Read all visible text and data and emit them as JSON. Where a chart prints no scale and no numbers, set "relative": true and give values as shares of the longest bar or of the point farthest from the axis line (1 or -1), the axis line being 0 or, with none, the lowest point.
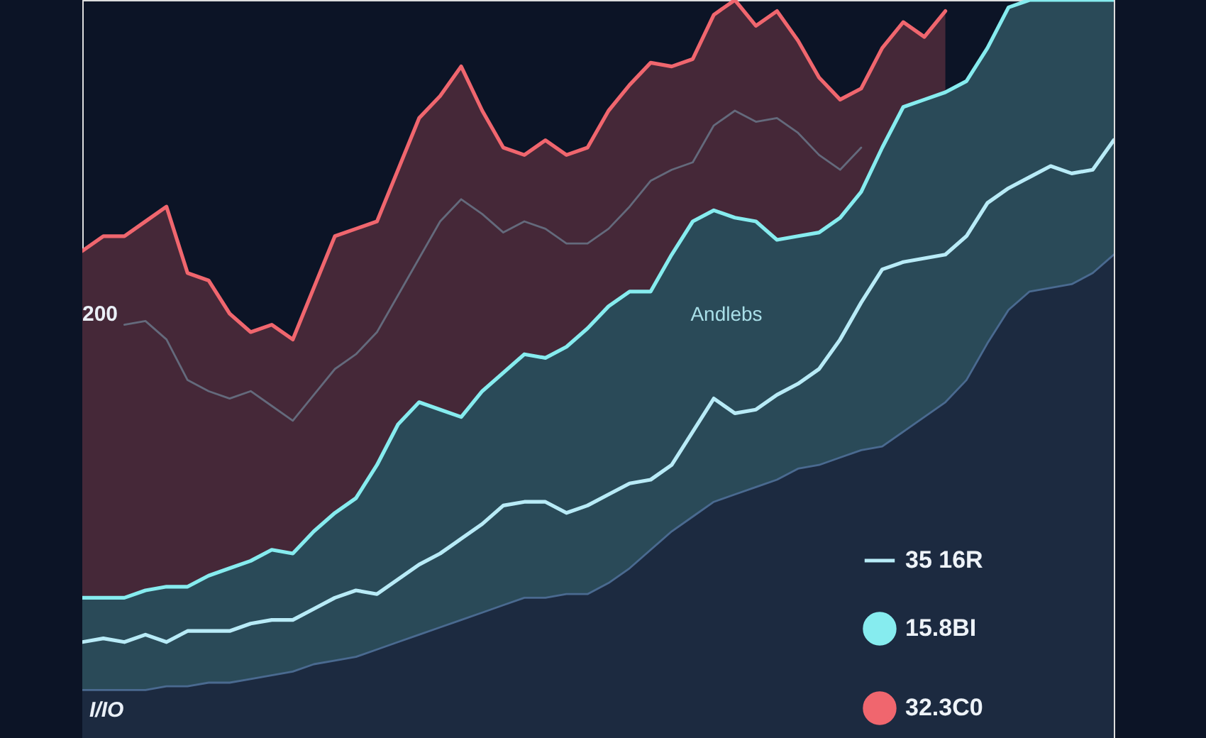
{
  "chart_data": {
    "type": "area",
    "relative": true,
    "legend": "bottom right",
    "categories": [
      null,
      null,
      null,
      null,
      null,
      null,
      null,
      null,
      null,
      null,
      null,
      null,
      null,
      null,
      null,
      null,
      null,
      null,
      null,
      null,
      null,
      null,
      null,
      null,
      null,
      null,
      null,
      null,
      null,
      null,
      null,
      null,
      null,
      null,
      null,
      null,
      null,
      null,
      null,
      null,
      null,
      null,
      null,
      null,
      null,
      null,
      null,
      null,
      null,
      null
    ],
    "series": [
      {
        "name": "32.3C0",
        "color": "#f0666e",
        "values": [
          0.66,
          0.68,
          0.68,
          0.7,
          0.72,
          0.63,
          0.62,
          0.575,
          0.55,
          0.56,
          0.54,
          0.61,
          0.68,
          0.69,
          0.7,
          0.77,
          0.84,
          0.87,
          0.91,
          0.85,
          0.8,
          0.79,
          0.81,
          0.79,
          0.8,
          0.85,
          0.885,
          0.915,
          0.91,
          0.92,
          0.98,
          1.0,
          0.965,
          0.985,
          0.945,
          0.895,
          0.865,
          0.88,
          0.935,
          0.97,
          0.95,
          0.985,
          null,
          null,
          null,
          null,
          null,
          null,
          null,
          null
        ]
      },
      {
        "type": "line",
        "color": "#646a7c",
        "values": [
          null,
          null,
          0.56,
          0.565,
          0.54,
          0.485,
          0.47,
          0.46,
          0.47,
          0.45,
          0.43,
          0.465,
          0.5,
          0.52,
          0.55,
          0.6,
          0.65,
          0.7,
          0.73,
          0.71,
          0.685,
          0.7,
          0.69,
          0.67,
          0.67,
          0.69,
          0.72,
          0.755,
          0.77,
          0.78,
          0.83,
          0.85,
          0.835,
          0.84,
          0.82,
          0.79,
          0.77,
          0.8,
          null,
          null,
          null,
          null,
          null,
          null,
          null,
          null,
          null,
          null,
          null,
          null
        ]
      },
      {
        "name": "15.8BI",
        "color": "#86ecef",
        "values": [
          0.19,
          0.19,
          0.19,
          0.2,
          0.205,
          0.205,
          0.22,
          0.23,
          0.24,
          0.255,
          0.25,
          0.28,
          0.305,
          0.325,
          0.37,
          0.425,
          0.455,
          0.445,
          0.435,
          0.47,
          0.495,
          0.52,
          0.515,
          0.53,
          0.555,
          0.585,
          0.605,
          0.605,
          0.655,
          0.7,
          0.715,
          0.705,
          0.7,
          0.675,
          0.68,
          0.685,
          0.705,
          0.74,
          0.8,
          0.855,
          0.865,
          0.875,
          0.89,
          0.935,
          0.99,
          1.0,
          1.0,
          1.0,
          1.0,
          1.0
        ]
      },
      {
        "name": "35 16R",
        "type": "line",
        "color": "#b8ebf7",
        "values": [
          0.13,
          0.135,
          0.13,
          0.14,
          0.13,
          0.145,
          0.145,
          0.145,
          0.155,
          0.16,
          0.16,
          0.175,
          0.19,
          0.2,
          0.195,
          0.215,
          0.235,
          0.25,
          0.27,
          0.29,
          0.315,
          0.32,
          0.32,
          0.305,
          0.315,
          0.33,
          0.345,
          0.35,
          0.37,
          0.415,
          0.46,
          0.44,
          0.445,
          0.465,
          0.48,
          0.5,
          0.54,
          0.59,
          0.635,
          0.645,
          0.65,
          0.655,
          0.68,
          0.725,
          0.745,
          0.76,
          0.775,
          0.765,
          0.77,
          0.81
        ]
      },
      {
        "color": "#4a6a90",
        "values": [
          0.065,
          0.065,
          0.065,
          0.065,
          0.07,
          0.07,
          0.075,
          0.075,
          0.08,
          0.085,
          0.09,
          0.1,
          0.105,
          0.11,
          0.12,
          0.13,
          0.14,
          0.15,
          0.16,
          0.17,
          0.18,
          0.19,
          0.19,
          0.195,
          0.195,
          0.21,
          0.23,
          0.255,
          0.28,
          0.3,
          0.32,
          0.33,
          0.34,
          0.35,
          0.365,
          0.37,
          0.38,
          0.39,
          0.395,
          0.415,
          0.435,
          0.455,
          0.485,
          0.535,
          0.58,
          0.605,
          0.61,
          0.615,
          0.63,
          0.655
        ]
      }
    ],
    "annotations": [
      "200",
      "Andlebs",
      "I/IO"
    ]
  }
}
